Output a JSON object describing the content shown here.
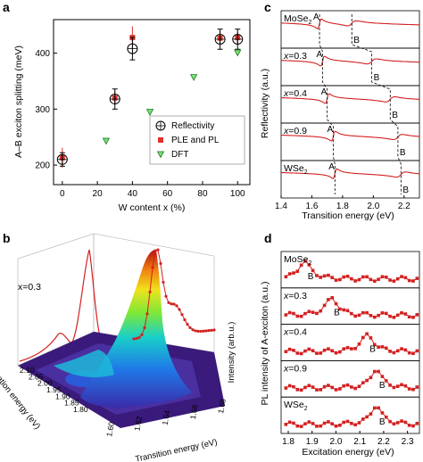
{
  "chart_data": [
    {
      "panel": "a",
      "type": "scatter",
      "xlabel": "W content x (%)",
      "ylabel": "A–B exciton splitting (meV)",
      "xlim": [
        -5,
        107
      ],
      "ylim": [
        165,
        460
      ],
      "xticks": [
        0,
        20,
        40,
        60,
        80,
        100
      ],
      "yticks": [
        200,
        300,
        400
      ],
      "legend": "bottom-right",
      "series": [
        {
          "name": "Reflectivity",
          "marker": "circle-cross",
          "color": "#000000",
          "x": [
            0,
            30,
            40,
            90,
            100
          ],
          "y": [
            210,
            318,
            408,
            425,
            425
          ],
          "err": [
            12,
            18,
            20,
            18,
            18
          ]
        },
        {
          "name": "PLE and PL",
          "marker": "square",
          "color": "#e0322b",
          "x": [
            0,
            30,
            40,
            90,
            100
          ],
          "y": [
            213,
            320,
            428,
            427,
            428
          ],
          "err": [
            18,
            12,
            20,
            12,
            10
          ]
        },
        {
          "name": "DFT",
          "marker": "triangle-down",
          "color": "#1fa31f",
          "x": [
            25,
            50,
            75,
            100
          ],
          "y": [
            243,
            295,
            357,
            401
          ]
        }
      ]
    },
    {
      "panel": "b",
      "type": "surface3d",
      "annotation": "x=0.3",
      "xlabel": "Transition energy (eV)",
      "ylabel": "Excitation energy (eV)",
      "zlabel": "Intensity (arb.u.)",
      "xticks": [
        "1.60",
        "1.62",
        "1.64",
        "1.66",
        "1.68"
      ],
      "yticks": [
        "1.80",
        "1.85",
        "1.90",
        "1.95",
        "2.00",
        "2.05",
        "2.10"
      ]
    },
    {
      "panel": "c",
      "type": "line",
      "xlabel": "Transition energy (eV)",
      "ylabel": "Reflectivity (a.u.)",
      "xlim": [
        1.4,
        2.3
      ],
      "xticks": [
        "1.4",
        "1.6",
        "1.8",
        "2.0",
        "2.2"
      ],
      "peak_labels": [
        "A",
        "B"
      ],
      "rows": [
        {
          "label": "MoSe",
          "sub": "2",
          "A": 1.65,
          "B": 1.86
        },
        {
          "label": "x=0.3",
          "sub": "",
          "A": 1.67,
          "B": 1.99
        },
        {
          "label": "x=0.4",
          "sub": "",
          "A": 1.7,
          "B": 2.11
        },
        {
          "label": "x=0.9",
          "sub": "",
          "A": 1.74,
          "B": 2.16
        },
        {
          "label": "WSe",
          "sub": "2",
          "A": 1.75,
          "B": 2.18
        }
      ]
    },
    {
      "panel": "d",
      "type": "line",
      "xlabel": "Excitation energy (eV)",
      "ylabel": "PL intensity of A-exciton (a.u.)",
      "xlim": [
        1.77,
        2.35
      ],
      "xticks": [
        "1.8",
        "1.9",
        "2.0",
        "2.1",
        "2.2",
        "2.3"
      ],
      "peak_label": "B",
      "rows": [
        {
          "label": "MoSe",
          "sub": "2",
          "B": 1.87
        },
        {
          "label": "x=0.3",
          "sub": "",
          "B": 1.98
        },
        {
          "label": "x=0.4",
          "sub": "",
          "B": 2.13
        },
        {
          "label": "x=0.9",
          "sub": "",
          "B": 2.17
        },
        {
          "label": "WSe",
          "sub": "2",
          "B": 2.17
        }
      ]
    }
  ],
  "panel_labels": [
    "a",
    "b",
    "c",
    "d"
  ]
}
